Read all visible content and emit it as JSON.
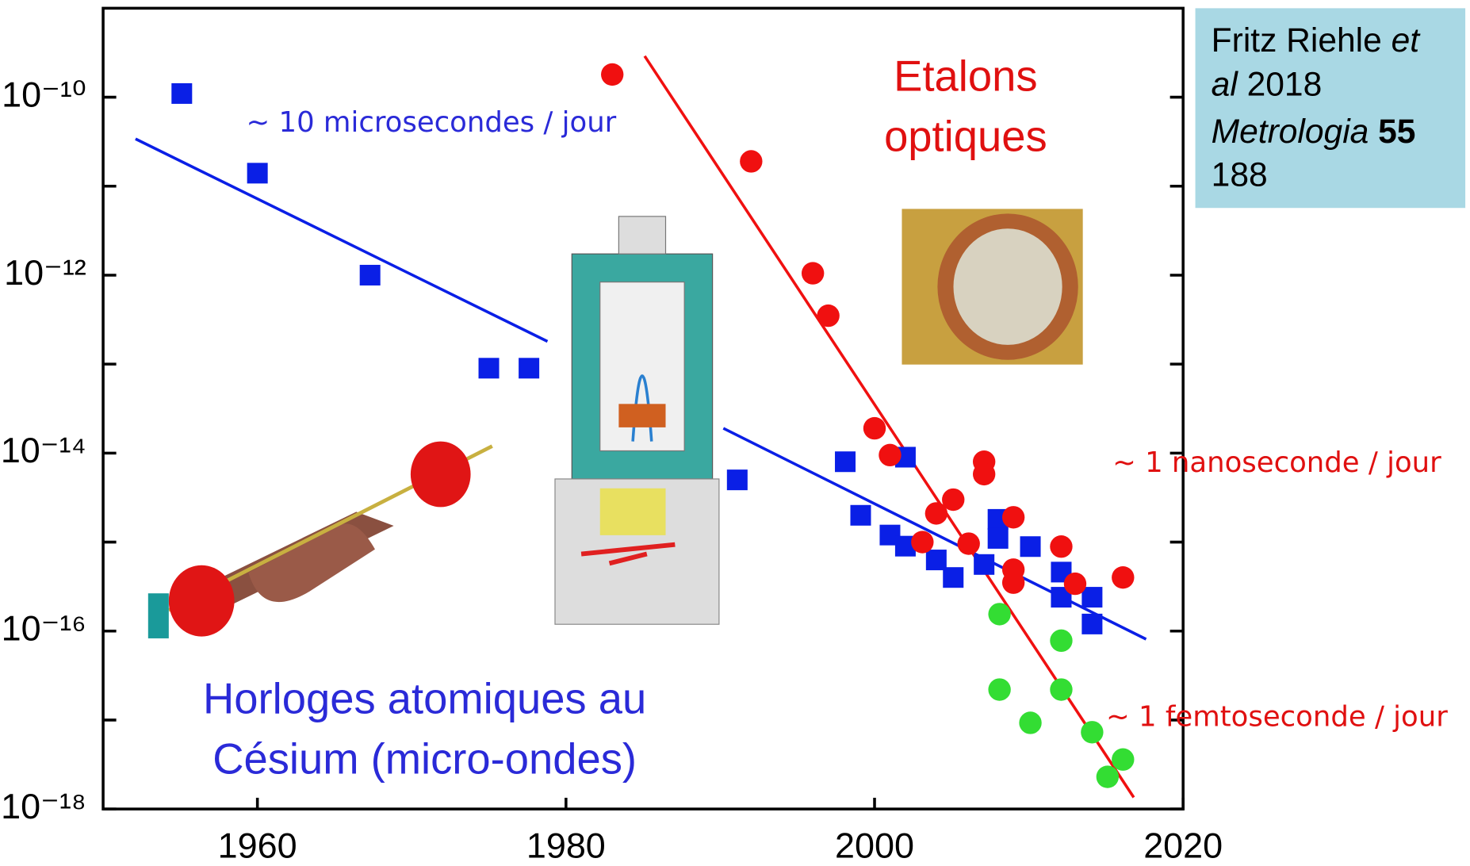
{
  "chart_data": {
    "type": "scatter",
    "log_y": true,
    "xlim": [
      1950,
      2020
    ],
    "xticks": [
      1960,
      1980,
      2000,
      2020
    ],
    "ylim": [
      1e-18,
      1e-09
    ],
    "yticks": [
      {
        "value": 1e-10,
        "label": "10⁻¹⁰"
      },
      {
        "value": 1e-12,
        "label": "10⁻¹²"
      },
      {
        "value": 1e-14,
        "label": "10⁻¹⁴"
      },
      {
        "value": 1e-16,
        "label": "10⁻¹⁶"
      },
      {
        "value": 1e-18,
        "label": "10⁻¹⁸"
      }
    ],
    "minor_yticks": [
      1e-11,
      1e-13,
      1e-15,
      1e-17
    ],
    "series": [
      {
        "color": "#0a1fe6",
        "marker": "square",
        "x": [
          1955.1,
          1960,
          1967.3,
          1975,
          1977.6,
          1991.1,
          1998.1,
          2002,
          1999.1,
          2001,
          2002,
          2004,
          2005.1,
          2007.1,
          2008,
          2008,
          2010.1,
          2012.1,
          2012.1,
          2014.1,
          2014.1
        ],
        "values": [
          1.1e-10,
          1.4e-11,
          1e-12,
          9e-14,
          9e-14,
          5e-15,
          8e-15,
          9e-15,
          2e-15,
          1.2e-15,
          9e-16,
          6.3e-16,
          4e-16,
          5.6e-16,
          1.8e-15,
          1.1e-15,
          8.9e-16,
          4.6e-16,
          2.4e-16,
          2.4e-16,
          1.2e-16
        ]
      },
      {
        "color": "#f01010",
        "marker": "circle",
        "x": [
          1983,
          1992,
          1996,
          1997,
          2000,
          2001,
          2003.1,
          2004,
          2005.1,
          2006.1,
          2007.1,
          2007.1,
          2009,
          2009,
          2009,
          2012.1,
          2013,
          2016.1
        ],
        "values": [
          1.8e-10,
          1.9e-11,
          1.05e-12,
          3.5e-13,
          1.9e-14,
          9.5e-15,
          1e-15,
          2.1e-15,
          3e-15,
          9.6e-16,
          8e-15,
          5.8e-15,
          1.9e-15,
          4.9e-16,
          3.5e-16,
          8.9e-16,
          3.4e-16,
          4e-16
        ]
      },
      {
        "color": "#33dd33",
        "marker": "circle",
        "x": [
          2008.1,
          2012.1,
          2008.1,
          2012.1,
          2010.1,
          2014.1,
          2016.1,
          2015.1
        ],
        "values": [
          1.55e-16,
          7.8e-17,
          2.2e-17,
          2.2e-17,
          9.3e-18,
          7.3e-18,
          3.6e-18,
          2.3e-18
        ]
      }
    ],
    "trend_lines": [
      {
        "color": "#0a1fe6",
        "x": [
          1952.1,
          1978.8
        ],
        "values": [
          3.4e-11,
          1.8e-13
        ]
      },
      {
        "color": "#0a1fe6",
        "x": [
          1990.2,
          2017.6
        ],
        "values": [
          1.9e-14,
          8.1e-17
        ]
      },
      {
        "color": "#f01010",
        "x": [
          1985.1,
          2016.8
        ],
        "values": [
          2.9e-10,
          1.35e-18
        ]
      }
    ],
    "annotations": {
      "microseconds": "~ 10 microsecondes / jour",
      "optical": [
        "Etalons",
        "optiques"
      ],
      "nanosecond": "~ 1 nanoseconde / jour",
      "femtosecond": "~ 1 femtoseconde / jour",
      "cesium": [
        "Horloges atomiques au",
        "Césium (micro-ondes)"
      ]
    },
    "citation": {
      "author": "Fritz Riehle",
      "et": "et",
      "al": "al",
      "year": "2018",
      "journal": "Metrologia",
      "volume": "55",
      "page": "188"
    }
  }
}
